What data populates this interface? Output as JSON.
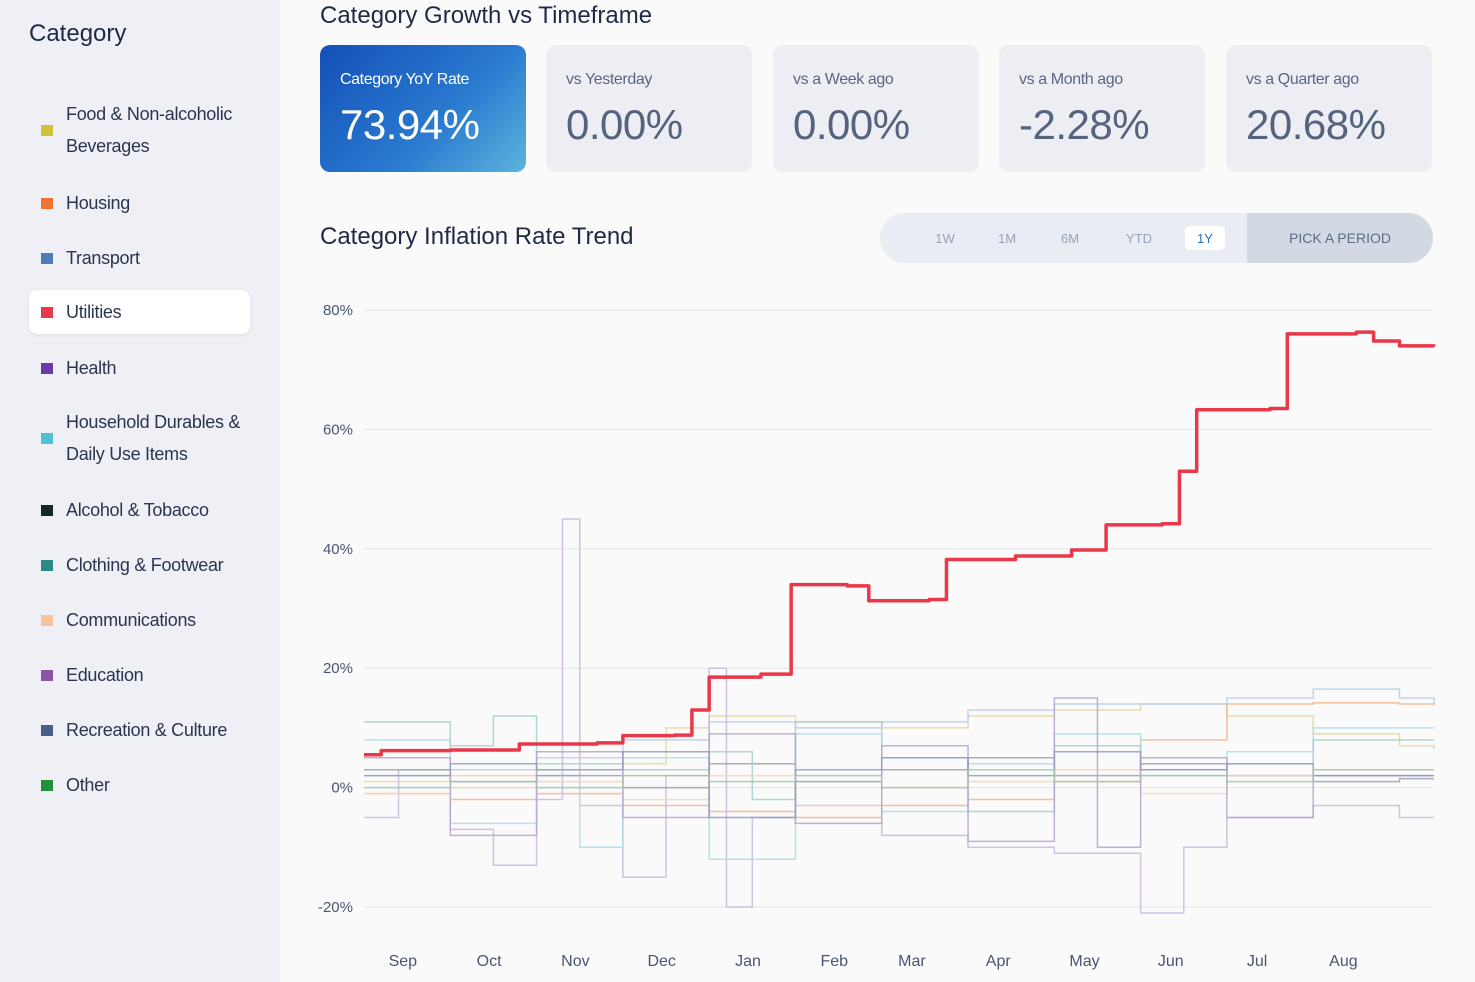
{
  "sidebar": {
    "title": "Category",
    "items": [
      {
        "label": "Food & Non-alcoholic Beverages",
        "color": "#d4bf3a"
      },
      {
        "label": "Housing",
        "color": "#f07430"
      },
      {
        "label": "Transport",
        "color": "#4c7fb8"
      },
      {
        "label": "Utilities",
        "color": "#e8384a",
        "selected": true
      },
      {
        "label": "Health",
        "color": "#6a3aa6"
      },
      {
        "label": "Household Durables & Daily Use Items",
        "color": "#4fc2d6"
      },
      {
        "label": "Alcohol & Tobacco",
        "color": "#13262a"
      },
      {
        "label": "Clothing & Footwear",
        "color": "#2c8a86"
      },
      {
        "label": "Communications",
        "color": "#f6c39a"
      },
      {
        "label": "Education",
        "color": "#8a57a8"
      },
      {
        "label": "Recreation & Culture",
        "color": "#4a5e8c"
      },
      {
        "label": "Other",
        "color": "#22913a"
      }
    ]
  },
  "header": {
    "title": "Category Growth vs Timeframe"
  },
  "cards": [
    {
      "label": "Category YoY Rate",
      "value": "73.94%"
    },
    {
      "label": "vs Yesterday",
      "value": "0.00%"
    },
    {
      "label": "vs a Week ago",
      "value": "0.00%"
    },
    {
      "label": "vs a Month ago",
      "value": "-2.28%"
    },
    {
      "label": "vs a Quarter ago",
      "value": "20.68%"
    }
  ],
  "trend": {
    "title": "Category Inflation Rate Trend",
    "periods": [
      "1W",
      "1M",
      "6M",
      "YTD",
      "1Y"
    ],
    "active_period": "1Y",
    "pick_label": "PICK A PERIOD"
  },
  "chart_data": {
    "type": "line",
    "ylim": [
      -20,
      80
    ],
    "y_ticks": [
      "80%",
      "60%",
      "40%",
      "20%",
      "0%",
      "-20%"
    ],
    "y_tick_values": [
      80,
      60,
      40,
      20,
      0,
      -20
    ],
    "x_ticks": [
      "Sep",
      "Oct",
      "Nov",
      "Dec",
      "Jan",
      "Feb",
      "Mar",
      "Apr",
      "May",
      "Jun",
      "Jul",
      "Aug"
    ],
    "grid": true,
    "highlight_series": {
      "name": "Utilities",
      "color": "#e8384a",
      "points": [
        [
          0.0,
          5.5
        ],
        [
          0.2,
          6.2
        ],
        [
          1.0,
          6.3
        ],
        [
          1.8,
          7.3
        ],
        [
          2.7,
          7.5
        ],
        [
          3.0,
          8.7
        ],
        [
          3.6,
          8.8
        ],
        [
          3.8,
          13.0
        ],
        [
          4.0,
          18.5
        ],
        [
          4.6,
          19.0
        ],
        [
          4.95,
          34.0
        ],
        [
          5.6,
          33.8
        ],
        [
          5.85,
          31.3
        ],
        [
          6.55,
          31.5
        ],
        [
          6.75,
          38.2
        ],
        [
          7.55,
          38.8
        ],
        [
          8.2,
          39.8
        ],
        [
          8.6,
          44.0
        ],
        [
          9.25,
          44.2
        ],
        [
          9.45,
          53.0
        ],
        [
          9.65,
          63.3
        ],
        [
          10.5,
          63.5
        ],
        [
          10.7,
          76.0
        ],
        [
          11.5,
          76.3
        ],
        [
          11.7,
          74.8
        ],
        [
          12.0,
          74.0
        ],
        [
          12.4,
          73.9
        ]
      ]
    },
    "other_series": [
      {
        "name": "Food & Non-alcoholic Beverages",
        "color": "#e3d89a",
        "points": [
          [
            0,
            1
          ],
          [
            1,
            2
          ],
          [
            2,
            3
          ],
          [
            3,
            4
          ],
          [
            3.5,
            10
          ],
          [
            4,
            12
          ],
          [
            5,
            11
          ],
          [
            6,
            10
          ],
          [
            7,
            12
          ],
          [
            8,
            13
          ],
          [
            9,
            14
          ],
          [
            10,
            12
          ],
          [
            11,
            9
          ],
          [
            12,
            7
          ],
          [
            12.4,
            6.5
          ]
        ]
      },
      {
        "name": "Housing",
        "color": "#f6b48a",
        "points": [
          [
            0,
            -1
          ],
          [
            1,
            -2
          ],
          [
            2,
            -1
          ],
          [
            3,
            -3
          ],
          [
            4,
            -4
          ],
          [
            5,
            -5
          ],
          [
            6,
            -3
          ],
          [
            7,
            -2
          ],
          [
            8,
            1
          ],
          [
            9,
            8
          ],
          [
            10,
            14
          ],
          [
            11,
            14.2
          ],
          [
            12,
            14
          ],
          [
            12.4,
            13.8
          ]
        ]
      },
      {
        "name": "Transport",
        "color": "#b8cde6",
        "points": [
          [
            0,
            2
          ],
          [
            1,
            3
          ],
          [
            2,
            5
          ],
          [
            3,
            8
          ],
          [
            4,
            11
          ],
          [
            5,
            10
          ],
          [
            6,
            11
          ],
          [
            7,
            13
          ],
          [
            8,
            14
          ],
          [
            9,
            14
          ],
          [
            10,
            15
          ],
          [
            11,
            16.5
          ],
          [
            12,
            15
          ],
          [
            12.4,
            14
          ]
        ]
      },
      {
        "name": "Health",
        "color": "#c7b8dc",
        "points": [
          [
            0,
            -5
          ],
          [
            0.4,
            3
          ],
          [
            1,
            -7
          ],
          [
            1.5,
            -13
          ],
          [
            2,
            -2
          ],
          [
            2.3,
            45
          ],
          [
            2.5,
            -3
          ],
          [
            3,
            -15
          ],
          [
            3.5,
            2
          ],
          [
            4,
            20
          ],
          [
            4.2,
            -20
          ],
          [
            4.5,
            -5
          ],
          [
            5,
            -3
          ],
          [
            6,
            -8
          ],
          [
            7,
            -10
          ],
          [
            8,
            -11
          ],
          [
            9,
            -21
          ],
          [
            9.5,
            -10
          ],
          [
            10,
            -5
          ],
          [
            11,
            -3
          ],
          [
            12,
            -5
          ],
          [
            12.4,
            -5
          ]
        ]
      },
      {
        "name": "Household Durables & Daily Use Items",
        "color": "#a9dde6",
        "points": [
          [
            0,
            8
          ],
          [
            1,
            -6
          ],
          [
            2,
            2
          ],
          [
            2.5,
            -10
          ],
          [
            3,
            5
          ],
          [
            4,
            -12
          ],
          [
            5,
            9
          ],
          [
            6,
            -4
          ],
          [
            7,
            4
          ],
          [
            8,
            9
          ],
          [
            9,
            2
          ],
          [
            10,
            6
          ],
          [
            11,
            10
          ],
          [
            12,
            10
          ],
          [
            12.4,
            10
          ]
        ]
      },
      {
        "name": "Alcohol & Tobacco",
        "color": "#9aa1ad",
        "points": [
          [
            0,
            3
          ],
          [
            1,
            1
          ],
          [
            2,
            2
          ],
          [
            3,
            0
          ],
          [
            4,
            4
          ],
          [
            5,
            1
          ],
          [
            6,
            3
          ],
          [
            7,
            5
          ],
          [
            8,
            2
          ],
          [
            9,
            4
          ],
          [
            10,
            2
          ],
          [
            11,
            1
          ],
          [
            12,
            1.5
          ],
          [
            12.4,
            1.5
          ]
        ]
      },
      {
        "name": "Clothing & Footwear",
        "color": "#9fd1cc",
        "points": [
          [
            0,
            11
          ],
          [
            1,
            7
          ],
          [
            1.5,
            12
          ],
          [
            2,
            4
          ],
          [
            3,
            3
          ],
          [
            4,
            6
          ],
          [
            4.5,
            -2
          ],
          [
            5,
            11
          ],
          [
            6,
            5
          ],
          [
            7,
            -4
          ],
          [
            8,
            7
          ],
          [
            9,
            3
          ],
          [
            10,
            4
          ],
          [
            11,
            8
          ],
          [
            12,
            8
          ],
          [
            12.4,
            8
          ]
        ]
      },
      {
        "name": "Communications",
        "color": "#f4d6b8",
        "points": [
          [
            0,
            -1
          ],
          [
            1,
            0
          ],
          [
            2,
            1
          ],
          [
            3,
            -2
          ],
          [
            4,
            2
          ],
          [
            5,
            -3
          ],
          [
            6,
            0
          ],
          [
            7,
            1
          ],
          [
            8,
            3
          ],
          [
            9,
            -1
          ],
          [
            10,
            2
          ],
          [
            11,
            3
          ],
          [
            12,
            3
          ],
          [
            12.4,
            3
          ]
        ]
      },
      {
        "name": "Education",
        "color": "#b9a1cf",
        "points": [
          [
            0,
            5
          ],
          [
            1,
            -8
          ],
          [
            2,
            6
          ],
          [
            3,
            -5
          ],
          [
            4,
            9
          ],
          [
            5,
            -6
          ],
          [
            6,
            7
          ],
          [
            7,
            -9
          ],
          [
            8,
            15
          ],
          [
            8.5,
            -10
          ],
          [
            9,
            5
          ],
          [
            10,
            -5
          ],
          [
            11,
            2
          ],
          [
            12,
            2
          ],
          [
            12.4,
            2
          ]
        ]
      },
      {
        "name": "Recreation & Culture",
        "color": "#8e9cc0",
        "points": [
          [
            0,
            2
          ],
          [
            1,
            4
          ],
          [
            2,
            3
          ],
          [
            3,
            6
          ],
          [
            4,
            -5
          ],
          [
            5,
            3
          ],
          [
            6,
            5
          ],
          [
            7,
            2
          ],
          [
            8,
            6
          ],
          [
            9,
            3
          ],
          [
            10,
            4
          ],
          [
            11,
            2
          ],
          [
            12,
            2
          ],
          [
            12.4,
            2
          ]
        ]
      },
      {
        "name": "Other",
        "color": "#a3c6a9",
        "points": [
          [
            0,
            0
          ],
          [
            1,
            1
          ],
          [
            2,
            0
          ],
          [
            3,
            2
          ],
          [
            4,
            1
          ],
          [
            5,
            2
          ],
          [
            6,
            0
          ],
          [
            7,
            3
          ],
          [
            8,
            1
          ],
          [
            9,
            2
          ],
          [
            10,
            1
          ],
          [
            11,
            3
          ],
          [
            12,
            3
          ],
          [
            12.4,
            3
          ]
        ]
      }
    ]
  }
}
